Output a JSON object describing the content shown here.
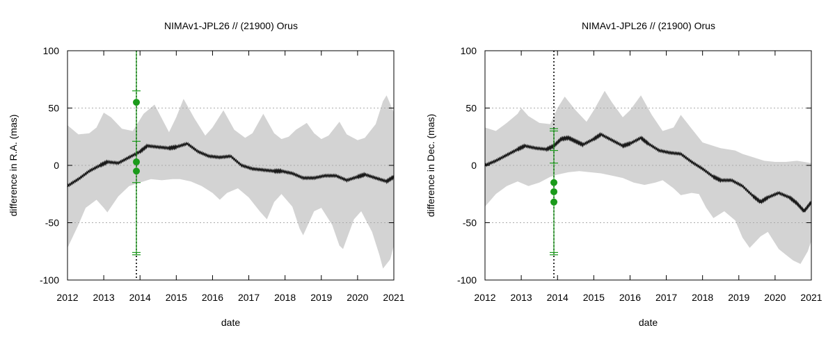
{
  "chart_data": [
    {
      "type": "line",
      "title": "NIMAv1-JPL26 // (21900) Orus",
      "xlabel": "date",
      "ylabel": "difference in R.A. (mas)",
      "xlim": [
        2012,
        2021
      ],
      "ylim": [
        -100,
        100
      ],
      "xticks": [
        2012,
        2013,
        2014,
        2015,
        2016,
        2017,
        2018,
        2019,
        2020,
        2021
      ],
      "yticks": [
        -100,
        -50,
        0,
        50,
        100
      ],
      "grid": "horizontal dotted",
      "colors": {
        "band": "#d3d3d3",
        "line": "#1a1a1a",
        "obs": "#1a9a1a",
        "vline": "#000000"
      },
      "vline_x": 13.9,
      "band_upper": [
        [
          2012.0,
          35
        ],
        [
          2012.3,
          27
        ],
        [
          2012.6,
          28
        ],
        [
          2012.8,
          33
        ],
        [
          2013.0,
          46
        ],
        [
          2013.2,
          42
        ],
        [
          2013.5,
          32
        ],
        [
          2013.8,
          30
        ],
        [
          2014.1,
          45
        ],
        [
          2014.4,
          53
        ],
        [
          2014.6,
          41
        ],
        [
          2014.8,
          29
        ],
        [
          2015.0,
          42
        ],
        [
          2015.2,
          58
        ],
        [
          2015.5,
          41
        ],
        [
          2015.8,
          26
        ],
        [
          2016.0,
          33
        ],
        [
          2016.3,
          48
        ],
        [
          2016.6,
          31
        ],
        [
          2016.9,
          24
        ],
        [
          2017.1,
          28
        ],
        [
          2017.4,
          45
        ],
        [
          2017.7,
          28
        ],
        [
          2017.9,
          23
        ],
        [
          2018.1,
          25
        ],
        [
          2018.3,
          31
        ],
        [
          2018.6,
          37
        ],
        [
          2018.8,
          28
        ],
        [
          2019.0,
          23
        ],
        [
          2019.2,
          26
        ],
        [
          2019.5,
          38
        ],
        [
          2019.7,
          27
        ],
        [
          2020.0,
          22
        ],
        [
          2020.2,
          24
        ],
        [
          2020.5,
          36
        ],
        [
          2020.7,
          56
        ],
        [
          2020.8,
          61
        ],
        [
          2021.0,
          46
        ]
      ],
      "band_lower": [
        [
          2012.0,
          -72
        ],
        [
          2012.3,
          -52
        ],
        [
          2012.5,
          -37
        ],
        [
          2012.8,
          -30
        ],
        [
          2013.0,
          -37
        ],
        [
          2013.1,
          -41
        ],
        [
          2013.4,
          -27
        ],
        [
          2013.7,
          -18
        ],
        [
          2014.0,
          -15
        ],
        [
          2014.3,
          -12
        ],
        [
          2014.6,
          -13
        ],
        [
          2014.9,
          -12
        ],
        [
          2015.1,
          -12
        ],
        [
          2015.4,
          -14
        ],
        [
          2015.7,
          -18
        ],
        [
          2016.0,
          -24
        ],
        [
          2016.2,
          -30
        ],
        [
          2016.4,
          -24
        ],
        [
          2016.7,
          -20
        ],
        [
          2017.0,
          -28
        ],
        [
          2017.3,
          -40
        ],
        [
          2017.5,
          -47
        ],
        [
          2017.7,
          -32
        ],
        [
          2017.9,
          -25
        ],
        [
          2018.2,
          -36
        ],
        [
          2018.4,
          -55
        ],
        [
          2018.5,
          -61
        ],
        [
          2018.8,
          -40
        ],
        [
          2019.0,
          -37
        ],
        [
          2019.3,
          -52
        ],
        [
          2019.5,
          -70
        ],
        [
          2019.6,
          -73
        ],
        [
          2019.9,
          -47
        ],
        [
          2020.1,
          -40
        ],
        [
          2020.4,
          -58
        ],
        [
          2020.6,
          -78
        ],
        [
          2020.7,
          -90
        ],
        [
          2020.9,
          -82
        ],
        [
          2021.0,
          -70
        ]
      ],
      "series": [
        {
          "values": [
            [
              2012.0,
              -18
            ],
            [
              2012.3,
              -12
            ],
            [
              2012.6,
              -5
            ],
            [
              2012.9,
              0
            ],
            [
              2013.1,
              3
            ],
            [
              2013.4,
              2
            ],
            [
              2013.7,
              7
            ],
            [
              2014.0,
              12
            ],
            [
              2014.2,
              17
            ],
            [
              2014.5,
              16
            ],
            [
              2014.8,
              15
            ],
            [
              2015.0,
              16
            ],
            [
              2015.3,
              19
            ],
            [
              2015.6,
              12
            ],
            [
              2015.9,
              8
            ],
            [
              2016.2,
              7
            ],
            [
              2016.5,
              8
            ],
            [
              2016.8,
              0
            ],
            [
              2017.1,
              -3
            ],
            [
              2017.4,
              -4
            ],
            [
              2017.7,
              -5
            ],
            [
              2017.9,
              -5
            ],
            [
              2018.2,
              -7
            ],
            [
              2018.5,
              -11
            ],
            [
              2018.8,
              -11
            ],
            [
              2019.1,
              -9
            ],
            [
              2019.4,
              -9
            ],
            [
              2019.7,
              -13
            ],
            [
              2020.0,
              -10
            ],
            [
              2020.2,
              -8
            ],
            [
              2020.5,
              -11
            ],
            [
              2020.8,
              -14
            ],
            [
              2021.0,
              -10
            ]
          ]
        }
      ],
      "observations": {
        "x": 2013.9,
        "points": [
          55,
          3,
          -5
        ],
        "errorbar_caps": [
          65,
          21,
          -15,
          -76,
          -78
        ]
      }
    },
    {
      "type": "line",
      "title": "NIMAv1-JPL26 // (21900) Orus",
      "xlabel": "date",
      "ylabel": "difference in Dec. (mas)",
      "xlim": [
        2012,
        2021
      ],
      "ylim": [
        -100,
        100
      ],
      "xticks": [
        2012,
        2013,
        2014,
        2015,
        2016,
        2017,
        2018,
        2019,
        2020,
        2021
      ],
      "yticks": [
        -100,
        -50,
        0,
        50,
        100
      ],
      "grid": "horizontal dotted",
      "colors": {
        "band": "#d3d3d3",
        "line": "#1a1a1a",
        "obs": "#1a9a1a",
        "vline": "#000000"
      },
      "vline_x": 13.9,
      "band_upper": [
        [
          2012.0,
          33
        ],
        [
          2012.3,
          30
        ],
        [
          2012.6,
          37
        ],
        [
          2012.9,
          45
        ],
        [
          2013.0,
          50
        ],
        [
          2013.2,
          43
        ],
        [
          2013.5,
          37
        ],
        [
          2013.8,
          36
        ],
        [
          2014.0,
          50
        ],
        [
          2014.2,
          60
        ],
        [
          2014.5,
          48
        ],
        [
          2014.8,
          38
        ],
        [
          2015.0,
          48
        ],
        [
          2015.3,
          65
        ],
        [
          2015.5,
          55
        ],
        [
          2015.8,
          42
        ],
        [
          2016.0,
          48
        ],
        [
          2016.3,
          61
        ],
        [
          2016.6,
          44
        ],
        [
          2016.9,
          30
        ],
        [
          2017.2,
          33
        ],
        [
          2017.4,
          44
        ],
        [
          2017.7,
          32
        ],
        [
          2018.0,
          20
        ],
        [
          2018.3,
          17
        ],
        [
          2018.5,
          15
        ],
        [
          2018.9,
          13
        ],
        [
          2019.1,
          10
        ],
        [
          2019.4,
          7
        ],
        [
          2019.7,
          4
        ],
        [
          2020.0,
          3
        ],
        [
          2020.3,
          3
        ],
        [
          2020.6,
          4
        ],
        [
          2020.8,
          3
        ],
        [
          2021.0,
          2
        ]
      ],
      "band_lower": [
        [
          2012.0,
          -36
        ],
        [
          2012.3,
          -25
        ],
        [
          2012.6,
          -18
        ],
        [
          2012.9,
          -14
        ],
        [
          2013.2,
          -18
        ],
        [
          2013.5,
          -15
        ],
        [
          2013.8,
          -10
        ],
        [
          2014.0,
          -8
        ],
        [
          2014.3,
          -6
        ],
        [
          2014.6,
          -5
        ],
        [
          2014.9,
          -6
        ],
        [
          2015.2,
          -7
        ],
        [
          2015.5,
          -9
        ],
        [
          2015.8,
          -11
        ],
        [
          2016.1,
          -15
        ],
        [
          2016.4,
          -17
        ],
        [
          2016.7,
          -15
        ],
        [
          2016.9,
          -13
        ],
        [
          2017.2,
          -20
        ],
        [
          2017.4,
          -26
        ],
        [
          2017.7,
          -24
        ],
        [
          2017.9,
          -25
        ],
        [
          2018.1,
          -37
        ],
        [
          2018.3,
          -46
        ],
        [
          2018.6,
          -40
        ],
        [
          2018.9,
          -48
        ],
        [
          2019.1,
          -63
        ],
        [
          2019.3,
          -72
        ],
        [
          2019.6,
          -62
        ],
        [
          2019.8,
          -58
        ],
        [
          2020.1,
          -73
        ],
        [
          2020.3,
          -78
        ],
        [
          2020.5,
          -83
        ],
        [
          2020.7,
          -86
        ],
        [
          2020.9,
          -75
        ],
        [
          2021.0,
          -66
        ]
      ],
      "series": [
        {
          "values": [
            [
              2012.0,
              0
            ],
            [
              2012.3,
              4
            ],
            [
              2012.6,
              9
            ],
            [
              2012.9,
              14
            ],
            [
              2013.1,
              17
            ],
            [
              2013.4,
              15
            ],
            [
              2013.7,
              14
            ],
            [
              2013.9,
              17
            ],
            [
              2014.1,
              23
            ],
            [
              2014.3,
              24
            ],
            [
              2014.5,
              21
            ],
            [
              2014.7,
              18
            ],
            [
              2015.0,
              23
            ],
            [
              2015.2,
              27
            ],
            [
              2015.5,
              22
            ],
            [
              2015.8,
              17
            ],
            [
              2016.0,
              19
            ],
            [
              2016.3,
              24
            ],
            [
              2016.5,
              19
            ],
            [
              2016.8,
              13
            ],
            [
              2017.1,
              11
            ],
            [
              2017.4,
              10
            ],
            [
              2017.7,
              3
            ],
            [
              2018.0,
              -3
            ],
            [
              2018.3,
              -10
            ],
            [
              2018.5,
              -13
            ],
            [
              2018.8,
              -13
            ],
            [
              2019.1,
              -18
            ],
            [
              2019.4,
              -27
            ],
            [
              2019.6,
              -32
            ],
            [
              2019.8,
              -28
            ],
            [
              2020.1,
              -24
            ],
            [
              2020.4,
              -28
            ],
            [
              2020.6,
              -33
            ],
            [
              2020.8,
              -40
            ],
            [
              2021.0,
              -32
            ]
          ]
        }
      ],
      "observations": {
        "x": 2013.9,
        "points": [
          -15,
          -23,
          -32
        ],
        "errorbar_caps": [
          32,
          30,
          13,
          2,
          -76,
          -78
        ]
      }
    }
  ]
}
